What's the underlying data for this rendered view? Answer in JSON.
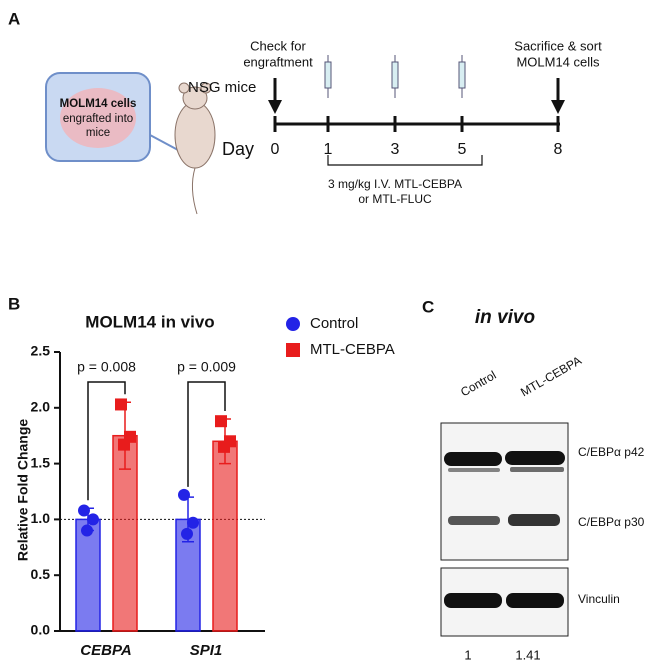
{
  "panel_a": {
    "label": "A",
    "inset_title": "MOLM14 cells",
    "inset_text": [
      "engrafted into",
      "mice"
    ],
    "mouse_label": "NSG mice",
    "check_label": [
      "Check for",
      "engraftment"
    ],
    "sacrifice_label": [
      "Sacrifice & sort",
      "MOLM14 cells"
    ],
    "day_label": "Day",
    "days": [
      0,
      1,
      3,
      5,
      8
    ],
    "treatment": [
      "3 mg/kg I.V. MTL-CEBPA",
      "or MTL-FLUC"
    ]
  },
  "chart_data": {
    "type": "bar",
    "label": "B",
    "title": "MOLM14 in vivo",
    "y_label": "Relative Fold Change",
    "categories": [
      "CEBPA",
      "SPI1"
    ],
    "series": [
      {
        "name": "Control",
        "color": "#2323e6",
        "values": [
          1.0,
          1.0
        ],
        "errors": [
          0.1,
          0.2
        ],
        "points": [
          [
            1.08,
            1.0,
            0.9
          ],
          [
            1.22,
            0.97,
            0.87
          ]
        ]
      },
      {
        "name": "MTL-CEBPA",
        "color": "#e81c1c",
        "values": [
          1.75,
          1.7
        ],
        "errors": [
          0.3,
          0.2
        ],
        "points": [
          [
            2.03,
            1.74,
            1.67
          ],
          [
            1.88,
            1.7,
            1.65
          ]
        ]
      }
    ],
    "annotations": [
      "p = 0.008",
      "p = 0.009"
    ],
    "reference_line": 1.0,
    "ylim": [
      0,
      2.5
    ],
    "yticks": [
      {
        "value": 0,
        "label": "0.0"
      },
      0.5,
      {
        "value": 1,
        "label": "1.0"
      },
      1.5,
      {
        "value": 2,
        "label": "2.0"
      },
      2.5
    ]
  },
  "panel_c": {
    "label": "C",
    "title": "in vivo",
    "lanes": [
      "Control",
      "MTL-CEBPA"
    ],
    "bands": [
      "C/EBPα p42",
      "C/EBPα p30"
    ],
    "loading": "Vinculin",
    "quantification": [
      1,
      1.41
    ]
  }
}
